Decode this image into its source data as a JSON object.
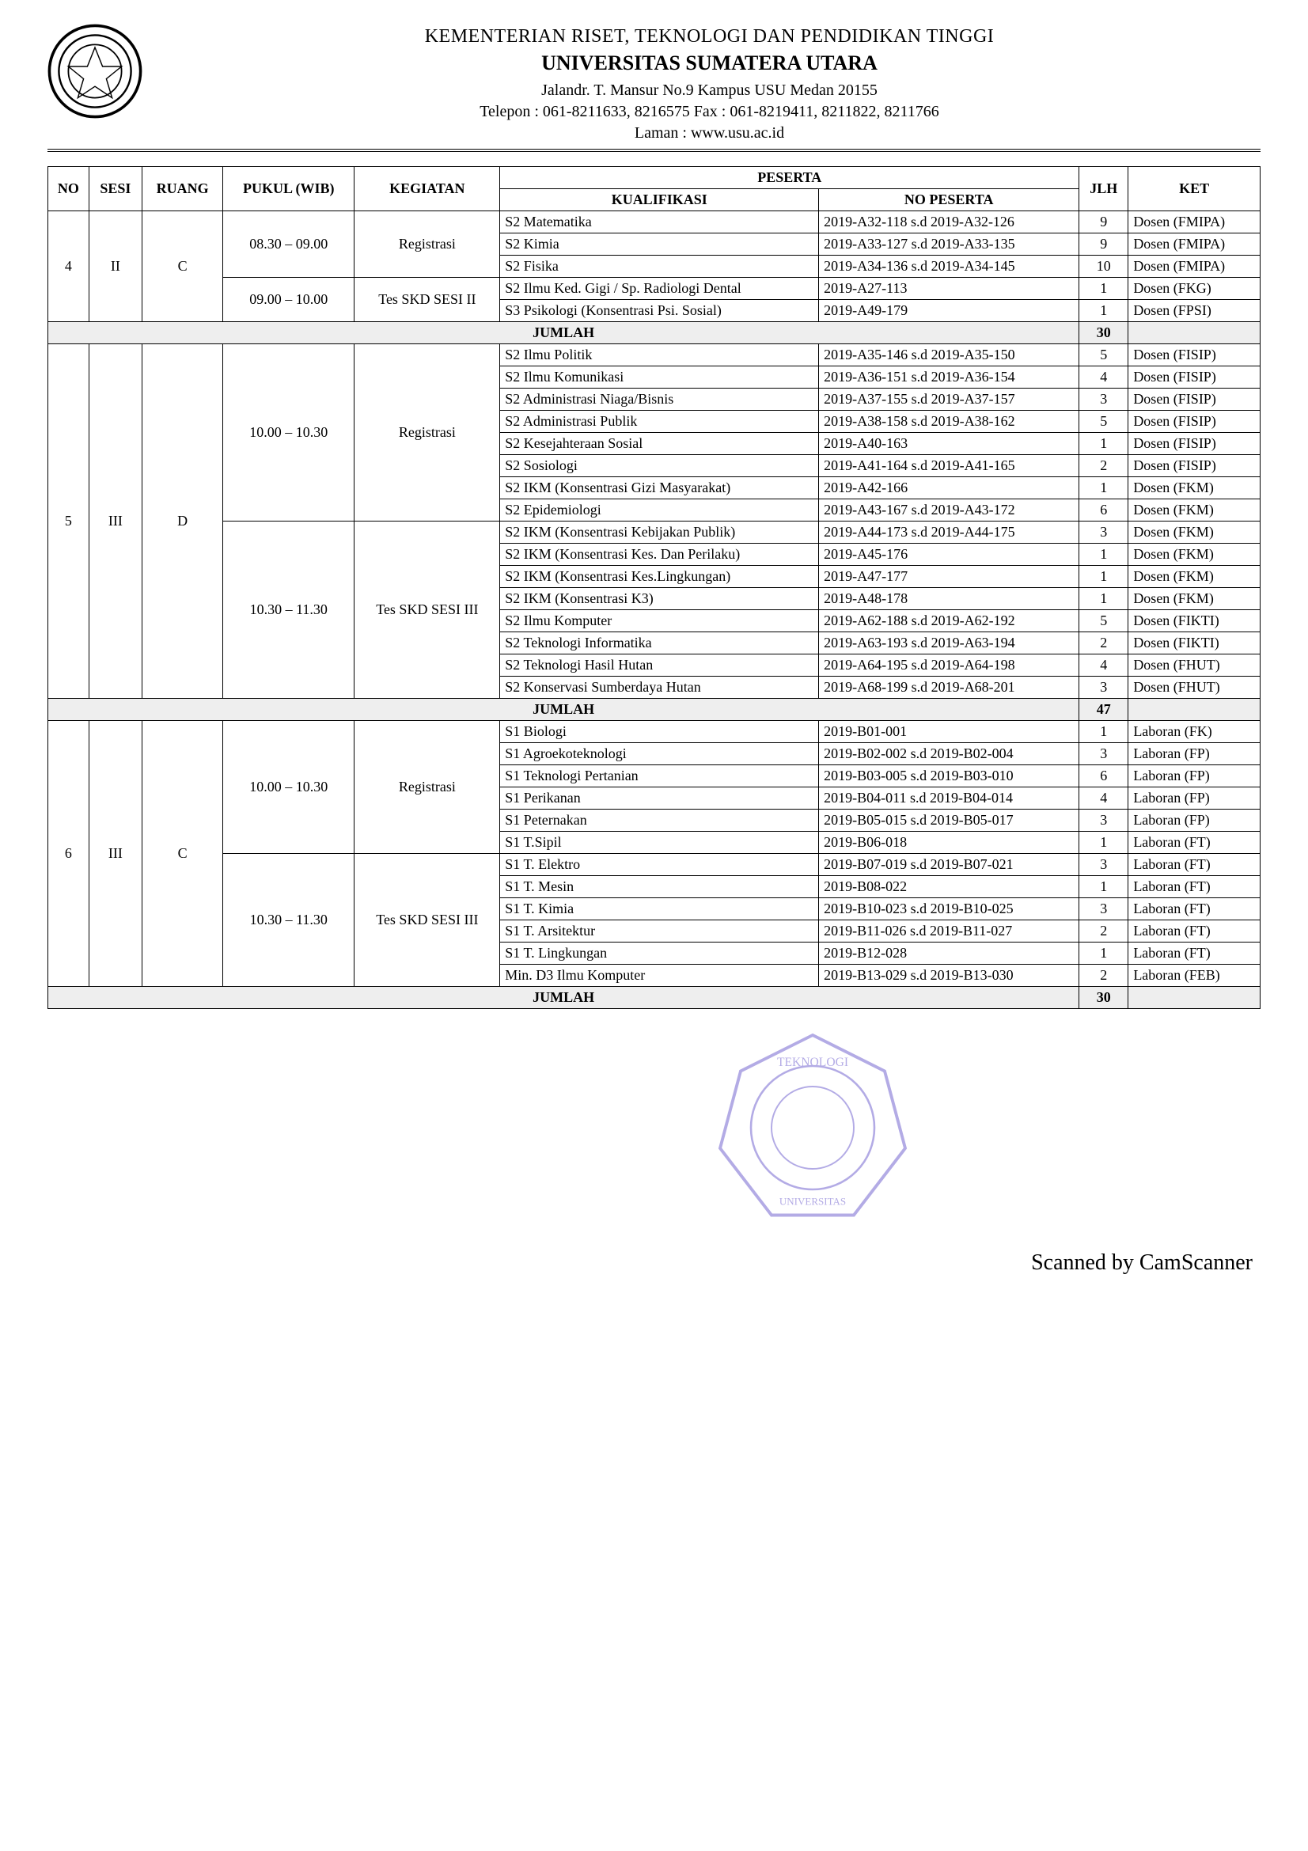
{
  "header": {
    "ministry": "KEMENTERIAN RISET, TEKNOLOGI DAN PENDIDIKAN TINGGI",
    "university": "UNIVERSITAS SUMATERA UTARA",
    "address": "Jalandr. T. Mansur No.9 Kampus USU Medan 20155",
    "phone": "Telepon : 061-8211633, 8216575 Fax : 061-8219411, 8211822, 8211766",
    "website": "Laman : www.usu.ac.id"
  },
  "columns": {
    "no": "NO",
    "sesi": "SESI",
    "ruang": "RUANG",
    "pukul": "PUKUL (WIB)",
    "kegiatan": "KEGIATAN",
    "peserta": "PESERTA",
    "kualifikasi": "KUALIFIKASI",
    "nopeserta": "NO PESERTA",
    "jlh": "JLH",
    "ket": "KET"
  },
  "jumlah_label": "JUMLAH",
  "blocks": [
    {
      "no": "4",
      "sesi": "II",
      "ruang": "C",
      "pukul": [
        "08.30 – 09.00",
        "09.00 – 10.00"
      ],
      "kegiatan": [
        "Registrasi",
        "Tes SKD SESI II"
      ],
      "rows": [
        {
          "kual": "S2 Matematika",
          "nop": "2019-A32-118 s.d 2019-A32-126",
          "jlh": "9",
          "ket": "Dosen (FMIPA)"
        },
        {
          "kual": "S2 Kimia",
          "nop": "2019-A33-127 s.d 2019-A33-135",
          "jlh": "9",
          "ket": "Dosen (FMIPA)"
        },
        {
          "kual": "S2 Fisika",
          "nop": "2019-A34-136 s.d 2019-A34-145",
          "jlh": "10",
          "ket": "Dosen (FMIPA)"
        },
        {
          "kual": "S2 Ilmu Ked. Gigi / Sp. Radiologi Dental",
          "nop": "2019-A27-113",
          "jlh": "1",
          "ket": "Dosen (FKG)"
        },
        {
          "kual": "S3 Psikologi (Konsentrasi Psi. Sosial)",
          "nop": "2019-A49-179",
          "jlh": "1",
          "ket": "Dosen (FPSI)"
        }
      ],
      "jumlah": "30"
    },
    {
      "no": "5",
      "sesi": "III",
      "ruang": "D",
      "pukul": [
        "10.00 – 10.30",
        "10.30 – 11.30"
      ],
      "kegiatan": [
        "Registrasi",
        "Tes SKD SESI III"
      ],
      "rows": [
        {
          "kual": "S2 Ilmu Politik",
          "nop": "2019-A35-146 s.d 2019-A35-150",
          "jlh": "5",
          "ket": "Dosen (FISIP)"
        },
        {
          "kual": "S2 Ilmu Komunikasi",
          "nop": "2019-A36-151 s.d 2019-A36-154",
          "jlh": "4",
          "ket": "Dosen (FISIP)"
        },
        {
          "kual": "S2 Administrasi Niaga/Bisnis",
          "nop": "2019-A37-155 s.d 2019-A37-157",
          "jlh": "3",
          "ket": "Dosen (FISIP)"
        },
        {
          "kual": "S2 Administrasi Publik",
          "nop": "2019-A38-158 s.d 2019-A38-162",
          "jlh": "5",
          "ket": "Dosen (FISIP)"
        },
        {
          "kual": "S2 Kesejahteraan Sosial",
          "nop": "2019-A40-163",
          "jlh": "1",
          "ket": "Dosen (FISIP)"
        },
        {
          "kual": "S2 Sosiologi",
          "nop": "2019-A41-164 s.d 2019-A41-165",
          "jlh": "2",
          "ket": "Dosen (FISIP)"
        },
        {
          "kual": "S2 IKM (Konsentrasi Gizi Masyarakat)",
          "nop": "2019-A42-166",
          "jlh": "1",
          "ket": "Dosen (FKM)"
        },
        {
          "kual": "S2 Epidemiologi",
          "nop": "2019-A43-167 s.d 2019-A43-172",
          "jlh": "6",
          "ket": "Dosen (FKM)"
        },
        {
          "kual": "S2 IKM (Konsentrasi Kebijakan Publik)",
          "nop": "2019-A44-173 s.d 2019-A44-175",
          "jlh": "3",
          "ket": "Dosen (FKM)"
        },
        {
          "kual": "S2 IKM (Konsentrasi Kes. Dan Perilaku)",
          "nop": "2019-A45-176",
          "jlh": "1",
          "ket": "Dosen (FKM)"
        },
        {
          "kual": "S2 IKM (Konsentrasi Kes.Lingkungan)",
          "nop": "2019-A47-177",
          "jlh": "1",
          "ket": "Dosen (FKM)"
        },
        {
          "kual": "S2 IKM (Konsentrasi K3)",
          "nop": "2019-A48-178",
          "jlh": "1",
          "ket": "Dosen (FKM)"
        },
        {
          "kual": "S2 Ilmu Komputer",
          "nop": "2019-A62-188 s.d 2019-A62-192",
          "jlh": "5",
          "ket": "Dosen (FIKTI)"
        },
        {
          "kual": "S2 Teknologi Informatika",
          "nop": "2019-A63-193 s.d 2019-A63-194",
          "jlh": "2",
          "ket": "Dosen (FIKTI)"
        },
        {
          "kual": "S2 Teknologi Hasil Hutan",
          "nop": "2019-A64-195 s.d 2019-A64-198",
          "jlh": "4",
          "ket": "Dosen (FHUT)"
        },
        {
          "kual": "S2 Konservasi Sumberdaya Hutan",
          "nop": "2019-A68-199 s.d 2019-A68-201",
          "jlh": "3",
          "ket": "Dosen (FHUT)"
        }
      ],
      "jumlah": "47"
    },
    {
      "no": "6",
      "sesi": "III",
      "ruang": "C",
      "pukul": [
        "10.00 – 10.30",
        "10.30 – 11.30"
      ],
      "kegiatan": [
        "Registrasi",
        "Tes SKD SESI III"
      ],
      "rows": [
        {
          "kual": "S1 Biologi",
          "nop": "2019-B01-001",
          "jlh": "1",
          "ket": "Laboran (FK)"
        },
        {
          "kual": "S1 Agroekoteknologi",
          "nop": "2019-B02-002 s.d 2019-B02-004",
          "jlh": "3",
          "ket": "Laboran (FP)"
        },
        {
          "kual": "S1 Teknologi Pertanian",
          "nop": "2019-B03-005 s.d 2019-B03-010",
          "jlh": "6",
          "ket": "Laboran (FP)"
        },
        {
          "kual": "S1 Perikanan",
          "nop": "2019-B04-011 s.d 2019-B04-014",
          "jlh": "4",
          "ket": "Laboran (FP)"
        },
        {
          "kual": "S1 Peternakan",
          "nop": "2019-B05-015 s.d 2019-B05-017",
          "jlh": "3",
          "ket": "Laboran (FP)"
        },
        {
          "kual": "S1 T.Sipil",
          "nop": "2019-B06-018",
          "jlh": "1",
          "ket": "Laboran (FT)"
        },
        {
          "kual": "S1 T. Elektro",
          "nop": "2019-B07-019 s.d 2019-B07-021",
          "jlh": "3",
          "ket": "Laboran (FT)"
        },
        {
          "kual": "S1 T. Mesin",
          "nop": "2019-B08-022",
          "jlh": "1",
          "ket": "Laboran (FT)"
        },
        {
          "kual": "S1 T. Kimia",
          "nop": "2019-B10-023 s.d 2019-B10-025",
          "jlh": "3",
          "ket": "Laboran (FT)"
        },
        {
          "kual": "S1 T. Arsitektur",
          "nop": "2019-B11-026 s.d 2019-B11-027",
          "jlh": "2",
          "ket": "Laboran (FT)"
        },
        {
          "kual": "S1 T. Lingkungan",
          "nop": "2019-B12-028",
          "jlh": "1",
          "ket": "Laboran (FT)"
        },
        {
          "kual": "Min. D3 Ilmu Komputer",
          "nop": "2019-B13-029 s.d 2019-B13-030",
          "jlh": "2",
          "ket": "Laboran (FEB)"
        }
      ],
      "jumlah": "30"
    }
  ],
  "scanned": "Scanned by CamScanner"
}
